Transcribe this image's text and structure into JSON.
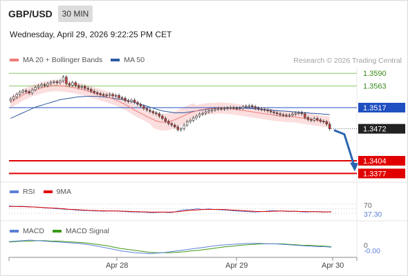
{
  "header": {
    "symbol": "GBP/USD",
    "timeframe": "30 MIN",
    "datetime": "Wednesday, April 29, 2026 9:22:25 PM CET",
    "credit": "Research © 2026 Trading Central"
  },
  "legend": {
    "ma20_bb": "MA 20 + Bollinger Bands",
    "ma50": "MA 50",
    "rsi": "RSI",
    "rsi_ma": "9MA",
    "macd": "MACD",
    "macd_signal": "MACD Signal"
  },
  "colors": {
    "ma20": "#f07a7a",
    "band": "#fbd3d3",
    "ma50": "#2c5aa0",
    "candle_up": "#ffffff",
    "candle_down": "#c83a3a",
    "resistance": "#8cc66a",
    "pivot": "#1f4fc0",
    "support": "#e00000",
    "rsi": "#5b7fd6",
    "rsi_ma": "#e00000",
    "macd": "#5b7fd6",
    "macd_signal": "#3a9a10",
    "arrow": "#2a64b0"
  },
  "chart_data": {
    "type": "candlestick",
    "title": "GBP/USD",
    "timeframe": "30 MIN",
    "ylim": [
      1.336,
      1.3605
    ],
    "x_ticks": [
      "Apr 28",
      "Apr 29",
      "Apr 30"
    ],
    "levels": [
      {
        "label": "1.3590",
        "value": 1.359,
        "kind": "resistance"
      },
      {
        "label": "1.3563",
        "value": 1.3563,
        "kind": "resistance"
      },
      {
        "label": "1.3517",
        "value": 1.3517,
        "kind": "pivot"
      },
      {
        "label": "1.3472",
        "value": 1.3472,
        "kind": "last"
      },
      {
        "label": "1.3404",
        "value": 1.3404,
        "kind": "support"
      },
      {
        "label": "1.3377",
        "value": 1.3377,
        "kind": "support"
      }
    ],
    "closes": [
      1.3535,
      1.354,
      1.3545,
      1.355,
      1.3553,
      1.3551,
      1.3548,
      1.3555,
      1.356,
      1.3563,
      1.3566,
      1.3564,
      1.3568,
      1.3571,
      1.3572,
      1.357,
      1.3574,
      1.3582,
      1.3568,
      1.3565,
      1.357,
      1.3564,
      1.356,
      1.3562,
      1.3558,
      1.3556,
      1.3552,
      1.3549,
      1.3547,
      1.3545,
      1.3544,
      1.3543,
      1.3545,
      1.3542,
      1.3543,
      1.3538,
      1.3537,
      1.3532,
      1.353,
      1.3533,
      1.3528,
      1.3524,
      1.352,
      1.3515,
      1.3512,
      1.3509,
      1.3506,
      1.3504,
      1.3499,
      1.3494,
      1.3488,
      1.3483,
      1.348,
      1.3476,
      1.347,
      1.3472,
      1.348,
      1.3487,
      1.349,
      1.3495,
      1.3499,
      1.3503,
      1.3505,
      1.3508,
      1.351,
      1.3512,
      1.3514,
      1.3515,
      1.3514,
      1.3515,
      1.3516,
      1.3517,
      1.3516,
      1.3515,
      1.3516,
      1.3519,
      1.352,
      1.3521,
      1.3519,
      1.3516,
      1.3514,
      1.3513,
      1.3512,
      1.351,
      1.3508,
      1.3506,
      1.3504,
      1.3502,
      1.3501,
      1.35,
      1.3501,
      1.3503,
      1.3505,
      1.3506,
      1.3504,
      1.3496,
      1.3492,
      1.349,
      1.3494,
      1.3491,
      1.3488,
      1.3487,
      1.3482,
      1.3472
    ],
    "ma20": [
      1.3528,
      1.3532,
      1.3536,
      1.354,
      1.3544,
      1.3547,
      1.355,
      1.3553,
      1.3555,
      1.3557,
      1.3559,
      1.3561,
      1.3562,
      1.3563,
      1.3564,
      1.3564,
      1.3563,
      1.3563,
      1.3562,
      1.3561,
      1.356,
      1.3559,
      1.3557,
      1.3556,
      1.3554,
      1.3552,
      1.355,
      1.3548,
      1.3546,
      1.3544,
      1.3542,
      1.354,
      1.3538,
      1.3536,
      1.3533,
      1.353,
      1.3527,
      1.3524,
      1.352,
      1.3516,
      1.3512,
      1.3508,
      1.3505,
      1.3502,
      1.3498,
      1.3495,
      1.3492,
      1.3489,
      1.3487,
      1.3486,
      1.3486,
      1.3487,
      1.3489,
      1.3491,
      1.3494,
      1.3497,
      1.35,
      1.3503,
      1.3506,
      1.3508,
      1.351,
      1.3512,
      1.3513,
      1.3514,
      1.3515,
      1.3515,
      1.3515,
      1.3516,
      1.3516,
      1.3516,
      1.3515,
      1.3515,
      1.3514,
      1.3513,
      1.3512,
      1.3511,
      1.351,
      1.3509,
      1.3508,
      1.3507,
      1.3506,
      1.3505,
      1.3504,
      1.3503,
      1.3502,
      1.3501,
      1.35,
      1.3499,
      1.3499,
      1.3498,
      1.3498,
      1.3498,
      1.3497,
      1.3496,
      1.3495,
      1.3494,
      1.3493,
      1.3492,
      1.3491,
      1.349,
      1.3489,
      1.3488,
      1.3487,
      1.3486
    ],
    "ma50": [
      1.3494,
      1.3497,
      1.35,
      1.3503,
      1.3506,
      1.3509,
      1.3512,
      1.3515,
      1.3518,
      1.352,
      1.3522,
      1.3524,
      1.3526,
      1.3528,
      1.353,
      1.3532,
      1.3534,
      1.3535,
      1.3536,
      1.3537,
      1.3538,
      1.3539,
      1.354,
      1.354,
      1.3541,
      1.3541,
      1.3541,
      1.3541,
      1.3541,
      1.354,
      1.354,
      1.3539,
      1.3538,
      1.3537,
      1.3536,
      1.3535,
      1.3534,
      1.3533,
      1.3531,
      1.353,
      1.3528,
      1.3526,
      1.3524,
      1.3522,
      1.352,
      1.3518,
      1.3516,
      1.3514,
      1.3512,
      1.351,
      1.3509,
      1.3508,
      1.3507,
      1.3506,
      1.3506,
      1.3506,
      1.3506,
      1.3507,
      1.3508,
      1.3509,
      1.351,
      1.3511,
      1.3512,
      1.3513,
      1.3514,
      1.3515,
      1.3516,
      1.3516,
      1.3517,
      1.3517,
      1.3517,
      1.3517,
      1.3517,
      1.3517,
      1.3516,
      1.3516,
      1.3516,
      1.3515,
      1.3515,
      1.3514,
      1.3514,
      1.3513,
      1.3513,
      1.3512,
      1.3512,
      1.3511,
      1.3511,
      1.351,
      1.351,
      1.3509,
      1.3509,
      1.3508,
      1.3508,
      1.3507,
      1.3507,
      1.3506,
      1.3506,
      1.3505,
      1.3505,
      1.3504,
      1.3504,
      1.3503,
      1.3503,
      1.3502
    ],
    "rsi": {
      "label": "37.30",
      "level_label": "70",
      "value": 37.3,
      "ylim": [
        0,
        100
      ],
      "rsi": [
        62,
        61,
        60,
        61,
        60,
        59,
        58,
        57,
        56,
        54,
        53,
        52,
        50,
        49,
        48,
        47,
        46,
        44,
        43,
        42,
        42,
        41,
        40,
        40,
        39,
        40,
        41,
        40,
        39,
        38,
        37,
        36,
        36,
        35,
        35,
        34,
        33,
        33,
        34,
        35,
        34,
        33,
        35,
        40,
        44,
        46,
        45,
        48,
        50,
        47,
        48,
        49,
        47,
        46,
        45,
        44,
        43,
        41,
        40,
        39,
        38,
        37,
        36,
        36,
        37,
        38,
        40,
        42,
        41,
        40,
        39,
        38,
        38,
        39,
        37,
        36,
        35,
        38,
        37,
        36,
        35,
        36,
        37
      ],
      "ma": [
        60,
        60,
        60,
        59,
        59,
        58,
        58,
        57,
        56,
        55,
        54,
        53,
        52,
        51,
        50,
        48,
        47,
        46,
        45,
        44,
        43,
        42,
        42,
        41,
        41,
        40,
        40,
        40,
        40,
        39,
        39,
        38,
        37,
        37,
        36,
        36,
        35,
        35,
        35,
        35,
        35,
        35,
        36,
        37,
        39,
        41,
        43,
        44,
        45,
        46,
        47,
        47,
        47,
        47,
        47,
        46,
        45,
        44,
        43,
        42,
        41,
        40,
        39,
        38,
        38,
        38,
        38,
        39,
        39,
        40,
        40,
        39,
        39,
        39,
        38,
        38,
        37,
        37,
        37,
        37,
        36,
        36,
        36
      ]
    },
    "macd": {
      "label": "-0.00",
      "zero_label": "0",
      "ylim": [
        -0.0025,
        0.0012
      ],
      "macd": [
        0.0006,
        0.0007,
        0.0008,
        0.0009,
        0.0008,
        0.0007,
        0.0006,
        0.0005,
        0.0004,
        0.0003,
        0.0002,
        0.0,
        -0.0002,
        -0.0005,
        -0.0008,
        -0.0011,
        -0.0014,
        -0.0016,
        -0.0018,
        -0.0019,
        -0.002,
        -0.0019,
        -0.0018,
        -0.0016,
        -0.0014,
        -0.0012,
        -0.001,
        -0.0008,
        -0.0006,
        -0.0004,
        -0.0002,
        -0.0001,
        0.0,
        0.0001,
        0.0002,
        0.0002,
        0.0002,
        0.0001,
        0.0001,
        0.0,
        -0.0001,
        -0.0002,
        -0.0003,
        -0.0004,
        -0.0005,
        -0.0005,
        -0.0006
      ],
      "signal": [
        0.0005,
        0.0006,
        0.0007,
        0.0007,
        0.0008,
        0.0008,
        0.0007,
        0.0007,
        0.0006,
        0.0005,
        0.0004,
        0.0003,
        0.0001,
        -0.0001,
        -0.0003,
        -0.0006,
        -0.0009,
        -0.0011,
        -0.0013,
        -0.0015,
        -0.0017,
        -0.0018,
        -0.0018,
        -0.0018,
        -0.0017,
        -0.0016,
        -0.0014,
        -0.0013,
        -0.0011,
        -0.0009,
        -0.0007,
        -0.0005,
        -0.0004,
        -0.0002,
        -0.0001,
        0.0,
        0.0001,
        0.0001,
        0.0001,
        0.0001,
        0.0,
        -0.0001,
        -0.0002,
        -0.0002,
        -0.0003,
        -0.0004,
        -0.0005
      ]
    }
  }
}
